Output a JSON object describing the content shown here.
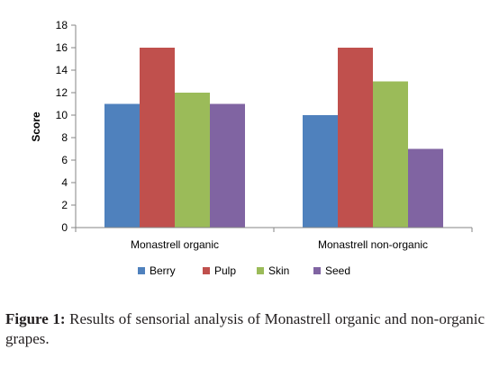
{
  "chart_data": {
    "type": "bar",
    "categories": [
      "Monastrell organic",
      "Monastrell non-organic"
    ],
    "series": [
      {
        "name": "Berry",
        "values": [
          11,
          10
        ],
        "color": "#4F81BD"
      },
      {
        "name": "Pulp",
        "values": [
          16,
          16
        ],
        "color": "#C0504D"
      },
      {
        "name": "Skin",
        "values": [
          12,
          13
        ],
        "color": "#9BBB59"
      },
      {
        "name": "Seed",
        "values": [
          11,
          7
        ],
        "color": "#8064A2"
      }
    ],
    "ylabel": "Score",
    "xlabel": "",
    "ylim": [
      0,
      18
    ],
    "yticks": [
      "0",
      "2",
      "4",
      "6",
      "8",
      "10",
      "12",
      "14",
      "16",
      "18"
    ],
    "grid": false,
    "legend_position": "bottom"
  },
  "caption": {
    "label": "Figure 1:",
    "text": "Results of sensorial analysis of Monastrell organic and non-organic grapes."
  }
}
